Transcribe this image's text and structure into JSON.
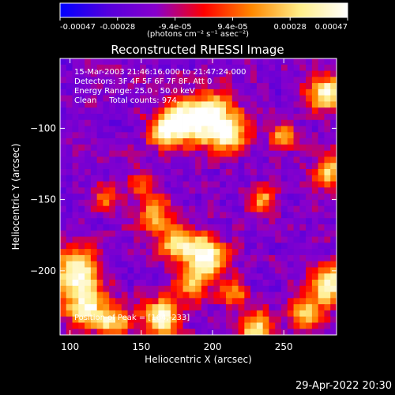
{
  "chart_data": {
    "type": "heatmap",
    "title": "Reconstructed RHESSI Image",
    "xlabel": "Heliocentric X (arcsec)",
    "ylabel": "Heliocentric Y (arcsec)",
    "xlim": [
      93,
      287
    ],
    "ylim": [
      -245,
      -51
    ],
    "xticks": [
      100,
      150,
      200,
      250
    ],
    "yticks": [
      -100,
      -150,
      -200
    ],
    "colorbar": {
      "range": [
        -0.00047,
        0.00047
      ],
      "tick_labels": [
        "-0.00047",
        "-0.00028",
        "-9.4e-05",
        "9.4e-05",
        "0.00028",
        "0.00047"
      ],
      "units_label": "(photons cm⁻² s⁻¹ asec⁻²)",
      "colors": [
        "#0000ff",
        "#5500dd",
        "#8800cc",
        "#ff0000",
        "#ff8800",
        "#ffee88",
        "#ffffff"
      ]
    },
    "annotations": [
      "15-Mar-2003 21:46:16.000 to 21:47:24.000",
      "Detectors: 3F 4F 5F 6F 7F 8F, Att 0",
      "Energy Range: 25.0 - 50.0 keV",
      "Clean     Total counts: 974."
    ],
    "peak_label": "Position of Peak = [164,-233]",
    "hotspots": [
      {
        "x": 180,
        "y": -95,
        "intensity": 1.0,
        "sigma": 10
      },
      {
        "x": 200,
        "y": -92,
        "intensity": 0.9,
        "sigma": 12
      },
      {
        "x": 165,
        "y": -102,
        "intensity": 0.7,
        "sigma": 8
      },
      {
        "x": 210,
        "y": -105,
        "intensity": 0.7,
        "sigma": 9
      },
      {
        "x": 195,
        "y": -190,
        "intensity": 1.0,
        "sigma": 10
      },
      {
        "x": 175,
        "y": -180,
        "intensity": 0.8,
        "sigma": 9
      },
      {
        "x": 160,
        "y": -160,
        "intensity": 0.7,
        "sigma": 8
      },
      {
        "x": 185,
        "y": -210,
        "intensity": 0.7,
        "sigma": 8
      },
      {
        "x": 105,
        "y": -200,
        "intensity": 1.0,
        "sigma": 11
      },
      {
        "x": 110,
        "y": -225,
        "intensity": 0.9,
        "sigma": 10
      },
      {
        "x": 130,
        "y": -235,
        "intensity": 0.8,
        "sigma": 8
      },
      {
        "x": 164,
        "y": -233,
        "intensity": 1.0,
        "sigma": 9
      },
      {
        "x": 280,
        "y": -75,
        "intensity": 0.9,
        "sigma": 9
      },
      {
        "x": 285,
        "y": -130,
        "intensity": 0.8,
        "sigma": 9
      },
      {
        "x": 282,
        "y": -210,
        "intensity": 0.9,
        "sigma": 10
      },
      {
        "x": 265,
        "y": -230,
        "intensity": 0.7,
        "sigma": 8
      },
      {
        "x": 250,
        "y": -105,
        "intensity": 0.6,
        "sigma": 7
      },
      {
        "x": 235,
        "y": -150,
        "intensity": 0.55,
        "sigma": 7
      },
      {
        "x": 230,
        "y": -240,
        "intensity": 0.8,
        "sigma": 8
      },
      {
        "x": 150,
        "y": -140,
        "intensity": 0.5,
        "sigma": 7
      },
      {
        "x": 215,
        "y": -215,
        "intensity": 0.55,
        "sigma": 7
      },
      {
        "x": 125,
        "y": -150,
        "intensity": 0.45,
        "sigma": 6
      }
    ]
  },
  "footer": {
    "timestamp": "29-Apr-2022 20:30"
  }
}
